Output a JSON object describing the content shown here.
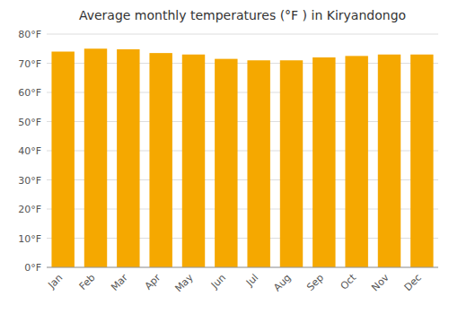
{
  "chart_data": {
    "type": "bar",
    "title": "Average monthly temperatures (°F ) in Kiryandongo",
    "categories": [
      "Jan",
      "Feb",
      "Mar",
      "Apr",
      "May",
      "Jun",
      "Jul",
      "Aug",
      "Sep",
      "Oct",
      "Nov",
      "Dec"
    ],
    "values": [
      74.0,
      75.0,
      74.8,
      73.5,
      73.0,
      71.5,
      71.0,
      71.0,
      72.0,
      72.5,
      73.0,
      73.0
    ],
    "color": "#F5A800",
    "ylim": [
      0,
      80
    ],
    "yticks": [
      {
        "value": 0,
        "label": "0°F"
      },
      {
        "value": 10,
        "label": "10°F"
      },
      {
        "value": 20,
        "label": "20°F"
      },
      {
        "value": 30,
        "label": "30°F"
      },
      {
        "value": 40,
        "label": "40°F"
      },
      {
        "value": 50,
        "label": "50°F"
      },
      {
        "value": 60,
        "label": "60°F"
      },
      {
        "value": 70,
        "label": "70°F"
      },
      {
        "value": 80,
        "label": "80°F"
      }
    ],
    "grid": true
  }
}
